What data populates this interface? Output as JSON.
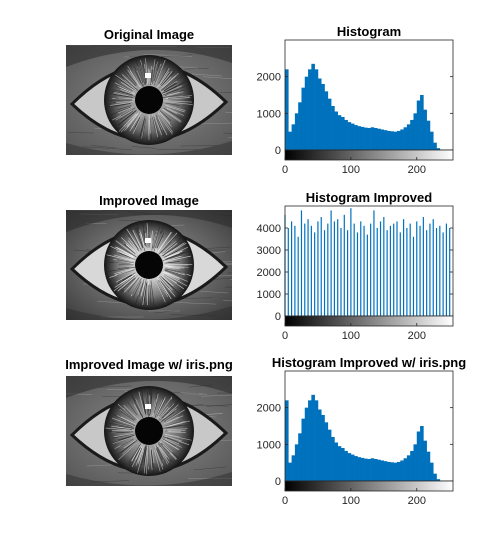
{
  "panels": [
    {
      "title": "Original Image",
      "variant": "original"
    },
    {
      "title": "Improved Image",
      "variant": "improved"
    },
    {
      "title": "Improved Image w/ iris.png",
      "variant": "iris"
    }
  ],
  "colors": {
    "bar": "#0072BD",
    "axis": "#262626",
    "background": "#ffffff"
  },
  "chart_data": [
    {
      "type": "bar",
      "title": "Histogram",
      "xlabel": "",
      "ylabel": "",
      "xlim": [
        0,
        255
      ],
      "ylim": [
        0,
        3000
      ],
      "xticks": [
        0,
        100,
        200
      ],
      "yticks": [
        0,
        1000,
        2000
      ],
      "colorbar": "grayscale",
      "x": [
        0,
        5,
        10,
        15,
        20,
        25,
        30,
        35,
        40,
        45,
        50,
        55,
        60,
        65,
        70,
        75,
        80,
        85,
        90,
        95,
        100,
        105,
        110,
        115,
        120,
        125,
        130,
        135,
        140,
        145,
        150,
        155,
        160,
        165,
        170,
        175,
        180,
        185,
        190,
        195,
        200,
        205,
        210,
        215,
        220,
        225,
        230,
        235,
        240,
        245,
        250,
        255
      ],
      "values": [
        2200,
        500,
        700,
        1000,
        1300,
        1700,
        2000,
        2200,
        2350,
        2200,
        1950,
        1800,
        1600,
        1400,
        1200,
        1050,
        950,
        900,
        820,
        760,
        720,
        680,
        650,
        630,
        610,
        600,
        620,
        600,
        580,
        560,
        540,
        520,
        510,
        500,
        520,
        560,
        620,
        700,
        820,
        1000,
        1350,
        1500,
        1100,
        800,
        500,
        200,
        50,
        10,
        0,
        0,
        0,
        0
      ]
    },
    {
      "type": "bar",
      "title": "Histogram Improved",
      "xlabel": "",
      "ylabel": "",
      "xlim": [
        0,
        255
      ],
      "ylim": [
        0,
        5000
      ],
      "xticks": [
        0,
        100,
        200
      ],
      "yticks": [
        0,
        1000,
        2000,
        3000,
        4000
      ],
      "colorbar": "grayscale",
      "x": [
        0,
        5,
        10,
        15,
        20,
        25,
        30,
        35,
        40,
        45,
        50,
        55,
        60,
        65,
        70,
        75,
        80,
        85,
        90,
        95,
        100,
        105,
        110,
        115,
        120,
        125,
        130,
        135,
        140,
        145,
        150,
        155,
        160,
        165,
        170,
        175,
        180,
        185,
        190,
        195,
        200,
        205,
        210,
        215,
        220,
        225,
        230,
        235,
        240,
        245,
        250
      ],
      "values": [
        4600,
        4000,
        4300,
        4100,
        3600,
        4800,
        4200,
        4400,
        4100,
        3800,
        4300,
        4500,
        3900,
        4200,
        4800,
        4300,
        4400,
        4000,
        4600,
        3900,
        4900,
        4200,
        3800,
        4300,
        4100,
        3700,
        4200,
        4800,
        4000,
        4300,
        4500,
        3900,
        4100,
        4200,
        4300,
        3800,
        4400,
        4000,
        4200,
        3600,
        4300,
        4100,
        4500,
        3900,
        4200,
        4400,
        4000,
        4100,
        3800,
        4200,
        4000
      ]
    },
    {
      "type": "bar",
      "title": "Histogram Improved w/ iris.png",
      "xlabel": "",
      "ylabel": "",
      "xlim": [
        0,
        255
      ],
      "ylim": [
        0,
        3000
      ],
      "xticks": [
        0,
        100,
        200
      ],
      "yticks": [
        0,
        1000,
        2000
      ],
      "colorbar": "grayscale",
      "x": [
        0,
        5,
        10,
        15,
        20,
        25,
        30,
        35,
        40,
        45,
        50,
        55,
        60,
        65,
        70,
        75,
        80,
        85,
        90,
        95,
        100,
        105,
        110,
        115,
        120,
        125,
        130,
        135,
        140,
        145,
        150,
        155,
        160,
        165,
        170,
        175,
        180,
        185,
        190,
        195,
        200,
        205,
        210,
        215,
        220,
        225,
        230,
        235,
        240,
        245,
        250,
        255
      ],
      "values": [
        2200,
        500,
        700,
        1000,
        1300,
        1700,
        2000,
        2200,
        2350,
        2200,
        1950,
        1800,
        1600,
        1400,
        1200,
        1050,
        950,
        900,
        820,
        760,
        720,
        680,
        650,
        630,
        610,
        600,
        620,
        600,
        580,
        560,
        540,
        520,
        510,
        500,
        520,
        560,
        620,
        700,
        820,
        1000,
        1350,
        1500,
        1100,
        800,
        500,
        200,
        50,
        10,
        0,
        0,
        0,
        0
      ]
    }
  ]
}
